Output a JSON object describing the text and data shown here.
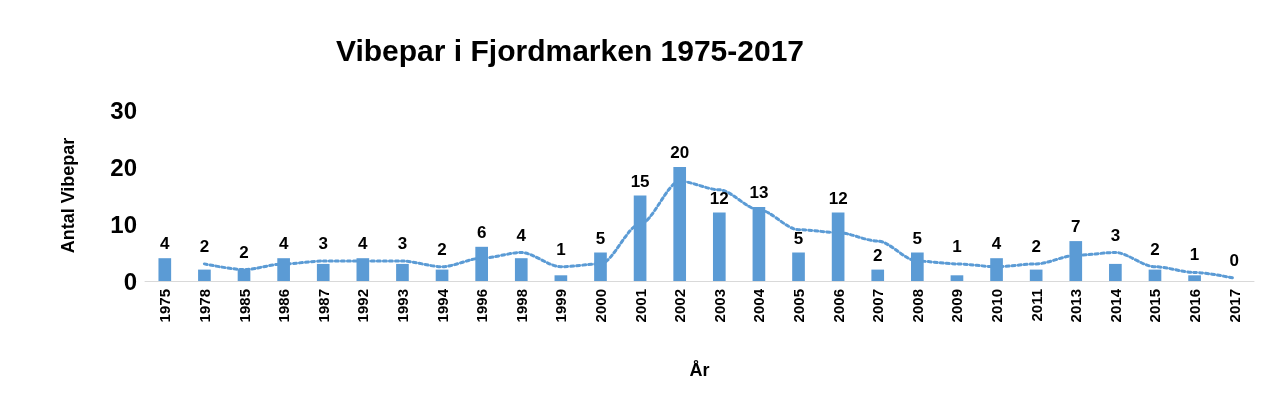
{
  "chart_data": {
    "type": "bar",
    "title": "Vibepar i Fjordmarken 1975-2017",
    "xlabel": "År",
    "ylabel": "Antal Vibepar",
    "categories": [
      "1975",
      "1978",
      "1985",
      "1986",
      "1987",
      "1992",
      "1993",
      "1994",
      "1996",
      "1998",
      "1999",
      "2000",
      "2001",
      "2002",
      "2003",
      "2004",
      "2005",
      "2006",
      "2007",
      "2008",
      "2009",
      "2010",
      "2011",
      "2013",
      "2014",
      "2015",
      "2016",
      "2017"
    ],
    "series": [
      {
        "color": "#5b9bd5",
        "data_labels": true,
        "values": [
          4,
          2,
          2,
          4,
          3,
          4,
          3,
          2,
          6,
          4,
          1,
          5,
          15,
          20,
          12,
          13,
          5,
          12,
          2,
          5,
          1,
          4,
          2,
          7,
          3,
          2,
          1,
          0
        ]
      },
      {
        "type": "line",
        "color": "#5b9bd5",
        "line_style": "dotted",
        "marker": "none",
        "values": [
          null,
          3,
          2,
          3,
          3.5,
          3.5,
          3.5,
          2.5,
          4,
          5,
          2.5,
          3,
          10,
          17.5,
          16,
          12.5,
          9,
          8.5,
          7,
          3.5,
          3,
          2.5,
          3,
          4.5,
          5,
          2.5,
          1.5,
          0.5
        ]
      }
    ],
    "ylim": [
      0,
      30
    ],
    "yticks": [
      0,
      10,
      20,
      30
    ],
    "grid": false
  }
}
